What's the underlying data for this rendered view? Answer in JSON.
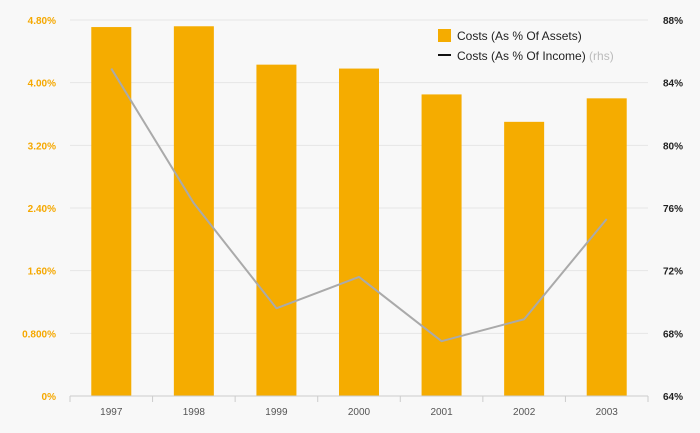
{
  "chart_data": {
    "type": "bar",
    "categories": [
      "1997",
      "1998",
      "1999",
      "2000",
      "2001",
      "2002",
      "2003"
    ],
    "series": [
      {
        "name": "Costs (As % Of Assets)",
        "kind": "bar",
        "axis": "left",
        "color": "#f5ac00",
        "values": [
          4.71,
          4.72,
          4.23,
          4.18,
          3.85,
          3.5,
          3.8
        ]
      },
      {
        "name": "Costs (As % Of Income)",
        "name_suffix": "(rhs)",
        "kind": "line",
        "axis": "right",
        "color": "#aaaaaa",
        "values": [
          84.9,
          76.3,
          69.6,
          71.6,
          67.5,
          68.9,
          75.3
        ]
      }
    ],
    "y_left": {
      "ylim": [
        0,
        4.8
      ],
      "ticks": [
        0,
        0.8,
        1.6,
        2.4,
        3.2,
        4.0,
        4.8
      ],
      "tick_labels": [
        "0%",
        "0.800%",
        "1.60%",
        "2.40%",
        "3.20%",
        "4.00%",
        "4.80%"
      ],
      "color": "#f5a800"
    },
    "y_right": {
      "ylim": [
        64,
        88
      ],
      "ticks": [
        64,
        68,
        72,
        76,
        80,
        84,
        88
      ],
      "tick_labels": [
        "64%",
        "68%",
        "72%",
        "76%",
        "80%",
        "84%",
        "88%"
      ],
      "color": "#222222"
    },
    "grid": true,
    "legend_position": "top-right",
    "title": "",
    "xlabel": "",
    "ylabel": ""
  }
}
